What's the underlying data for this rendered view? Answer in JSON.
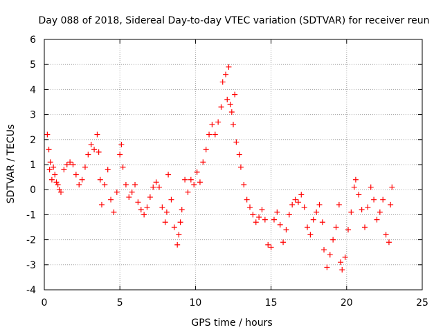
{
  "chart_data": {
    "type": "scatter",
    "title": "Day 088 of 2018, Sidereal Day-to-day VTEC variation (SDTVAR) for receiver reun",
    "xlabel": "GPS time / hours",
    "ylabel": "SDTVAR / TECUs",
    "xlim": [
      0,
      25
    ],
    "ylim": [
      -4,
      6
    ],
    "x_ticks": [
      "0",
      "5",
      "10",
      "15",
      "20",
      "25"
    ],
    "y_ticks": [
      "-4",
      "-3",
      "-2",
      "-1",
      "0",
      "1",
      "2",
      "3",
      "4",
      "5",
      "6"
    ],
    "grid": true,
    "marker": "+",
    "series": [
      {
        "name": "SDTVAR",
        "color": "#ff0000",
        "points": [
          [
            0.2,
            2.2
          ],
          [
            0.3,
            1.6
          ],
          [
            0.35,
            0.8
          ],
          [
            0.4,
            1.1
          ],
          [
            0.5,
            0.4
          ],
          [
            0.6,
            0.9
          ],
          [
            0.7,
            0.6
          ],
          [
            0.8,
            0.3
          ],
          [
            0.9,
            0.2
          ],
          [
            1.0,
            0.0
          ],
          [
            1.1,
            -0.1
          ],
          [
            1.3,
            0.8
          ],
          [
            1.5,
            1.0
          ],
          [
            1.7,
            1.1
          ],
          [
            1.9,
            1.0
          ],
          [
            2.1,
            0.6
          ],
          [
            2.3,
            0.2
          ],
          [
            2.5,
            0.4
          ],
          [
            2.7,
            0.9
          ],
          [
            2.9,
            1.4
          ],
          [
            3.1,
            1.8
          ],
          [
            3.3,
            1.6
          ],
          [
            3.5,
            2.2
          ],
          [
            3.6,
            1.5
          ],
          [
            3.7,
            0.4
          ],
          [
            3.8,
            -0.6
          ],
          [
            4.0,
            0.2
          ],
          [
            4.2,
            0.8
          ],
          [
            4.4,
            -0.4
          ],
          [
            4.6,
            -0.9
          ],
          [
            4.8,
            -0.1
          ],
          [
            5.0,
            1.4
          ],
          [
            5.1,
            1.8
          ],
          [
            5.2,
            0.9
          ],
          [
            5.4,
            0.2
          ],
          [
            5.6,
            -0.3
          ],
          [
            5.8,
            -0.1
          ],
          [
            6.0,
            0.2
          ],
          [
            6.2,
            -0.5
          ],
          [
            6.4,
            -0.8
          ],
          [
            6.6,
            -1.0
          ],
          [
            6.8,
            -0.7
          ],
          [
            7.0,
            -0.3
          ],
          [
            7.2,
            0.1
          ],
          [
            7.4,
            0.3
          ],
          [
            7.6,
            0.1
          ],
          [
            7.8,
            -0.7
          ],
          [
            8.0,
            -1.3
          ],
          [
            8.1,
            -0.9
          ],
          [
            8.2,
            0.6
          ],
          [
            8.4,
            -0.4
          ],
          [
            8.6,
            -1.5
          ],
          [
            8.8,
            -2.2
          ],
          [
            8.9,
            -1.8
          ],
          [
            9.0,
            -1.3
          ],
          [
            9.1,
            -0.8
          ],
          [
            9.3,
            0.4
          ],
          [
            9.5,
            -0.1
          ],
          [
            9.7,
            0.4
          ],
          [
            9.9,
            0.2
          ],
          [
            10.1,
            0.7
          ],
          [
            10.3,
            0.3
          ],
          [
            10.5,
            1.1
          ],
          [
            10.7,
            1.6
          ],
          [
            10.9,
            2.2
          ],
          [
            11.1,
            2.6
          ],
          [
            11.3,
            2.2
          ],
          [
            11.5,
            2.7
          ],
          [
            11.7,
            3.3
          ],
          [
            11.8,
            4.3
          ],
          [
            12.0,
            4.6
          ],
          [
            12.1,
            3.6
          ],
          [
            12.2,
            4.9
          ],
          [
            12.3,
            3.4
          ],
          [
            12.4,
            3.1
          ],
          [
            12.5,
            2.6
          ],
          [
            12.6,
            3.8
          ],
          [
            12.7,
            1.9
          ],
          [
            12.9,
            1.4
          ],
          [
            13.0,
            0.9
          ],
          [
            13.2,
            0.2
          ],
          [
            13.4,
            -0.4
          ],
          [
            13.6,
            -0.7
          ],
          [
            13.8,
            -1.0
          ],
          [
            14.0,
            -1.3
          ],
          [
            14.2,
            -1.1
          ],
          [
            14.4,
            -0.8
          ],
          [
            14.6,
            -1.2
          ],
          [
            14.8,
            -2.2
          ],
          [
            15.0,
            -2.3
          ],
          [
            15.2,
            -1.2
          ],
          [
            15.4,
            -0.9
          ],
          [
            15.6,
            -1.4
          ],
          [
            15.8,
            -2.1
          ],
          [
            16.0,
            -1.6
          ],
          [
            16.2,
            -1.0
          ],
          [
            16.4,
            -0.6
          ],
          [
            16.6,
            -0.4
          ],
          [
            16.8,
            -0.5
          ],
          [
            17.0,
            -0.2
          ],
          [
            17.2,
            -0.7
          ],
          [
            17.4,
            -1.5
          ],
          [
            17.6,
            -1.8
          ],
          [
            17.8,
            -1.2
          ],
          [
            18.0,
            -0.9
          ],
          [
            18.2,
            -0.6
          ],
          [
            18.4,
            -1.3
          ],
          [
            18.5,
            -2.4
          ],
          [
            18.7,
            -3.1
          ],
          [
            18.9,
            -2.6
          ],
          [
            19.1,
            -2.0
          ],
          [
            19.3,
            -1.5
          ],
          [
            19.5,
            -0.6
          ],
          [
            19.6,
            -2.9
          ],
          [
            19.7,
            -3.2
          ],
          [
            19.9,
            -2.7
          ],
          [
            20.1,
            -1.6
          ],
          [
            20.3,
            -0.9
          ],
          [
            20.5,
            0.1
          ],
          [
            20.6,
            0.4
          ],
          [
            20.8,
            -0.2
          ],
          [
            21.0,
            -0.8
          ],
          [
            21.2,
            -1.5
          ],
          [
            21.4,
            -0.7
          ],
          [
            21.6,
            0.1
          ],
          [
            21.8,
            -0.4
          ],
          [
            22.0,
            -1.2
          ],
          [
            22.2,
            -0.9
          ],
          [
            22.4,
            -0.4
          ],
          [
            22.6,
            -1.8
          ],
          [
            22.8,
            -2.1
          ],
          [
            22.9,
            -0.6
          ],
          [
            23.0,
            0.1
          ]
        ]
      }
    ]
  }
}
